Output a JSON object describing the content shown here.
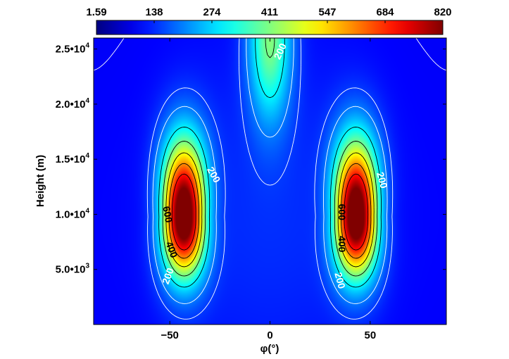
{
  "chart_data": {
    "type": "heatmap",
    "xlabel": "φ(°)",
    "ylabel": "Height (m)",
    "xlim": [
      -88,
      88
    ],
    "ylim": [
      0,
      26000
    ],
    "x_ticks": [
      {
        "value": -50,
        "label": "−50"
      },
      {
        "value": 0,
        "label": "0"
      },
      {
        "value": 50,
        "label": "50"
      }
    ],
    "y_ticks": [
      {
        "value": 5000,
        "mant": "5.0",
        "exp": "3"
      },
      {
        "value": 10000,
        "mant": "1.0",
        "exp": "4"
      },
      {
        "value": 15000,
        "mant": "1.5",
        "exp": "4"
      },
      {
        "value": 20000,
        "mant": "2.0",
        "exp": "4"
      },
      {
        "value": 25000,
        "mant": "2.5",
        "exp": "4"
      }
    ],
    "colorbar": {
      "min": 1.59,
      "max": 820,
      "ticks": [
        "1.59",
        "138",
        "274",
        "411",
        "547",
        "684",
        "820"
      ],
      "colormap": "jet"
    },
    "features": [
      {
        "name": "southern maximum",
        "x": -43,
        "y": 9800,
        "peak": 820
      },
      {
        "name": "northern maximum",
        "x": 43,
        "y": 9800,
        "peak": 820
      },
      {
        "name": "equatorial upper maximum",
        "x": 0,
        "y": 26000,
        "peak": 330
      }
    ],
    "contour_levels": [
      100,
      150,
      200,
      300,
      400,
      500,
      600,
      700
    ],
    "contour_labels": [
      {
        "text": "200",
        "x": 5,
        "y": 24800,
        "angle": -65,
        "color": "#ffffff"
      },
      {
        "text": "200",
        "x": -28,
        "y": 13600,
        "angle": 60,
        "color": "#ffffff"
      },
      {
        "text": "200",
        "x": 56,
        "y": 13100,
        "angle": 75,
        "color": "#ffffff"
      },
      {
        "text": "600",
        "x": -51,
        "y": 10000,
        "angle": 80,
        "color": "#000000"
      },
      {
        "text": "400",
        "x": -49,
        "y": 6800,
        "angle": 70,
        "color": "#000000"
      },
      {
        "text": "200",
        "x": -51,
        "y": 4400,
        "angle": -70,
        "color": "#ffffff"
      },
      {
        "text": "600",
        "x": 36,
        "y": 10200,
        "angle": 90,
        "color": "#000000"
      },
      {
        "text": "400",
        "x": 36,
        "y": 7300,
        "angle": 90,
        "color": "#000000"
      },
      {
        "text": "200",
        "x": 35,
        "y": 4000,
        "angle": 75,
        "color": "#ffffff"
      }
    ]
  }
}
